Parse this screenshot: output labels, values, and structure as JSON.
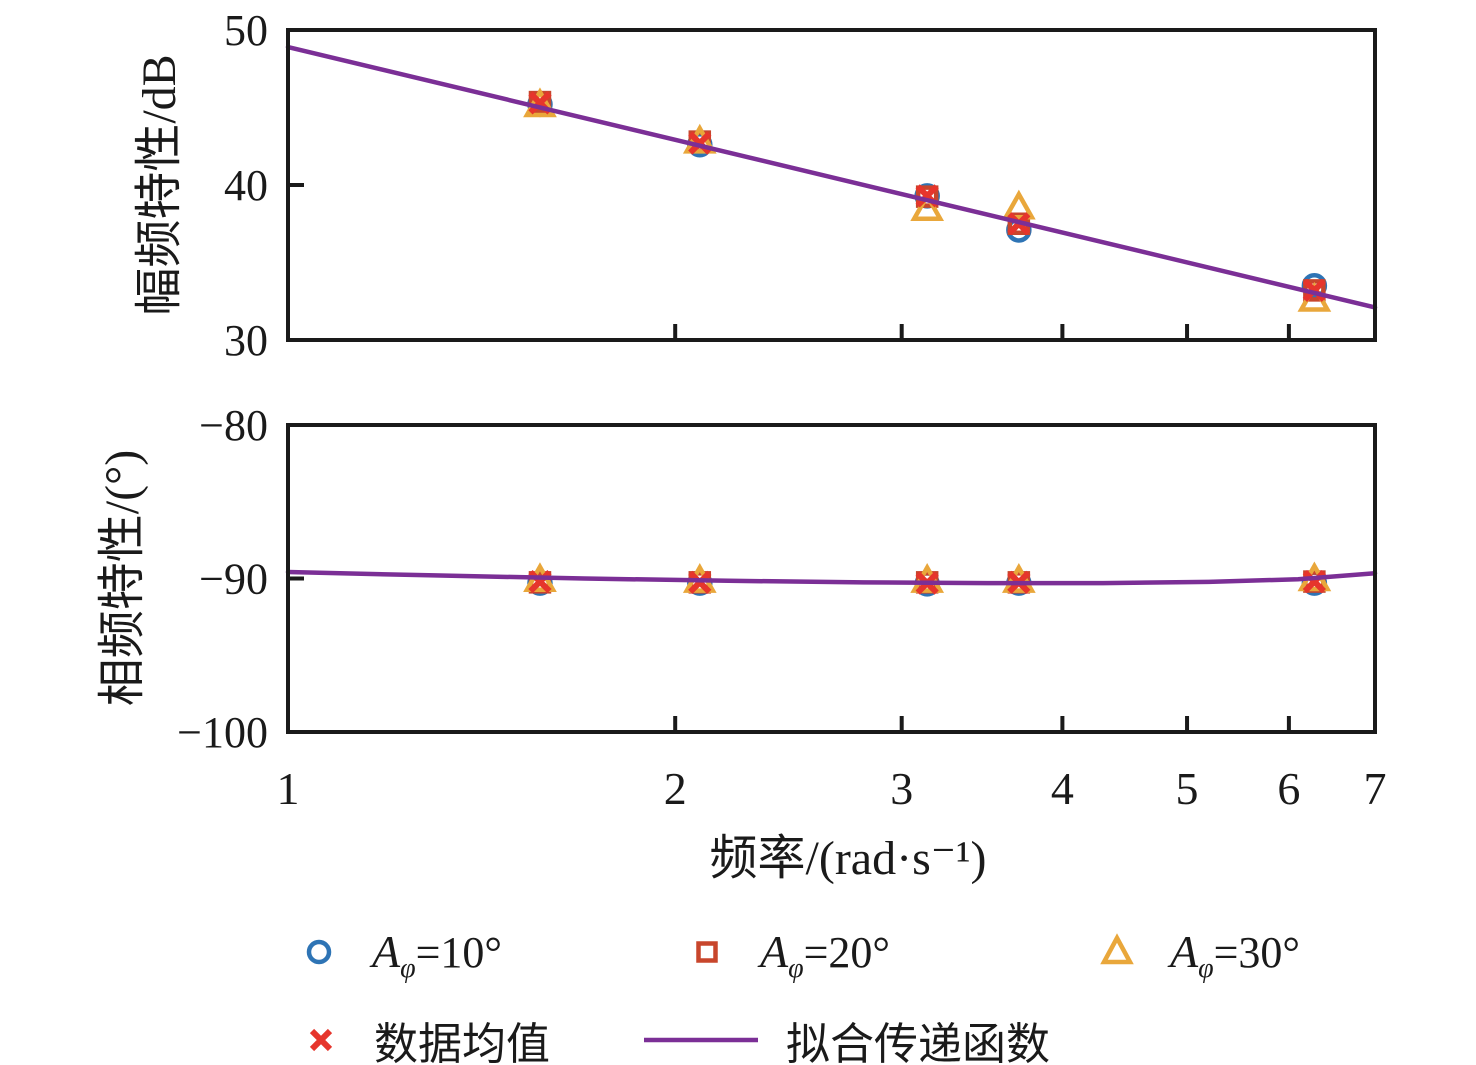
{
  "figure": {
    "background": "#ffffff",
    "axis_color": "#1a1a1a"
  },
  "xlabel": "频率/(rad·s⁻¹)",
  "chart_data": [
    {
      "type": "scatter",
      "panel": "magnitude",
      "ylabel": "幅频特性/dB",
      "xscale": "log",
      "xlim": [
        1,
        7
      ],
      "xticks": [
        1,
        2,
        3,
        4,
        5,
        6,
        7
      ],
      "ylim": [
        30,
        50
      ],
      "yticks": [
        50,
        40,
        30
      ],
      "grid": false,
      "x": [
        1.57,
        2.09,
        3.14,
        3.7,
        6.28
      ],
      "series": [
        {
          "name": "Aφ=10°",
          "marker": "circle",
          "color": "#2e74b5",
          "values": [
            45.2,
            42.6,
            39.3,
            37.1,
            33.5
          ]
        },
        {
          "name": "Aφ=20°",
          "marker": "square",
          "color": "#c8462c",
          "values": [
            45.35,
            42.8,
            39.25,
            37.5,
            33.2
          ]
        },
        {
          "name": "Aφ=30°",
          "marker": "triangle",
          "color": "#e9a73b",
          "values": [
            45.1,
            42.75,
            38.4,
            38.5,
            32.55
          ]
        },
        {
          "name": "数据均值",
          "marker": "x",
          "color": "#e6352c",
          "values": [
            45.3,
            42.7,
            39.3,
            37.5,
            33.2
          ]
        }
      ],
      "fit": {
        "name": "拟合传递函数",
        "color": "#7b2f96",
        "slope_dB_per_decade": -20,
        "x": [
          1,
          7
        ],
        "values": [
          48.9,
          32.1
        ]
      }
    },
    {
      "type": "scatter",
      "panel": "phase",
      "ylabel": "相频特性/(°)",
      "xscale": "log",
      "xlim": [
        1,
        7
      ],
      "xticks": [
        1,
        2,
        3,
        4,
        5,
        6,
        7
      ],
      "ylim": [
        -100,
        -80
      ],
      "yticks": [
        -80,
        -90,
        -100
      ],
      "grid": false,
      "x": [
        1.57,
        2.09,
        3.14,
        3.7,
        6.28
      ],
      "series": [
        {
          "name": "Aφ=10°",
          "marker": "circle",
          "color": "#2e74b5",
          "values": [
            -90.3,
            -90.3,
            -90.35,
            -90.3,
            -90.3
          ]
        },
        {
          "name": "Aφ=20°",
          "marker": "square",
          "color": "#c8462c",
          "values": [
            -90.25,
            -90.25,
            -90.25,
            -90.25,
            -90.2
          ]
        },
        {
          "name": "Aφ=30°",
          "marker": "triangle",
          "color": "#e9a73b",
          "values": [
            -90.15,
            -90.2,
            -90.2,
            -90.2,
            -90.1
          ]
        },
        {
          "name": "数据均值",
          "marker": "x",
          "color": "#e6352c",
          "values": [
            -90.2,
            -90.25,
            -90.3,
            -90.25,
            -90.2
          ]
        }
      ],
      "fit": {
        "name": "拟合传递函数",
        "color": "#7b2f96",
        "x": [
          1,
          1.3,
          1.7,
          2.2,
          2.8,
          3.5,
          4.3,
          5.2,
          6.1,
          7
        ],
        "values": [
          -89.58,
          -89.8,
          -90.0,
          -90.15,
          -90.25,
          -90.3,
          -90.3,
          -90.22,
          -90.05,
          -89.66
        ]
      }
    }
  ],
  "legend": {
    "entries": [
      {
        "marker": "circle",
        "base": "A",
        "sub": "φ",
        "rest": "=10°"
      },
      {
        "marker": "square",
        "base": "A",
        "sub": "φ",
        "rest": "=20°"
      },
      {
        "marker": "triangle",
        "base": "A",
        "sub": "φ",
        "rest": "=30°"
      },
      {
        "marker": "x",
        "label": "数据均值"
      },
      {
        "marker": "line",
        "label": "拟合传递函数"
      }
    ]
  }
}
